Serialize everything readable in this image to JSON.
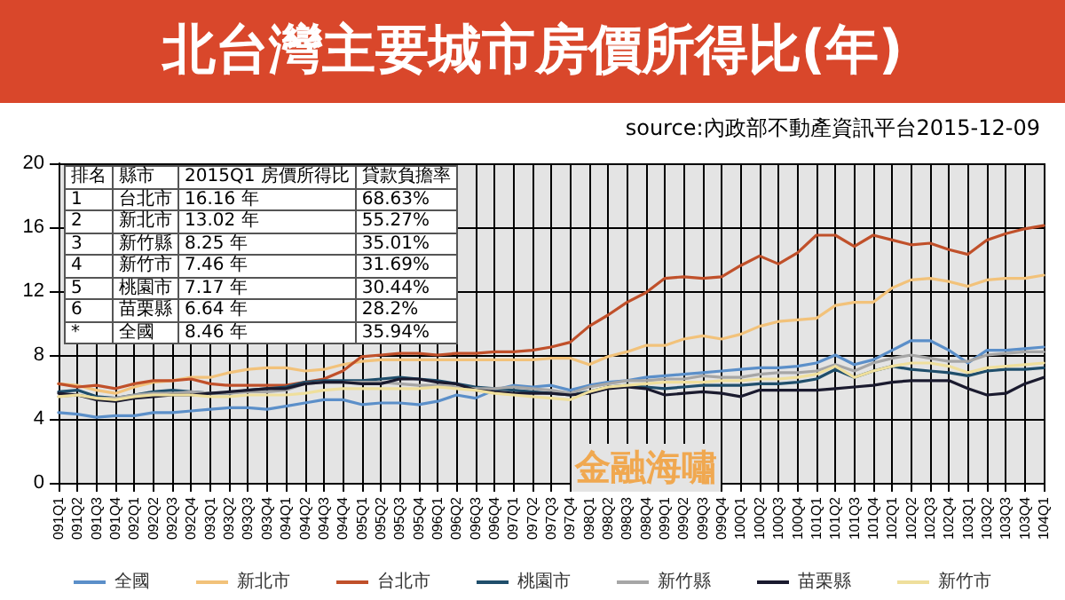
{
  "chart_data": {
    "type": "line",
    "title": "北台灣主要城市房價所得比(年)",
    "annotations": [
      "source:內政部不動產資訊平台2015-12-09",
      "金融海嘯",
      "排名",
      "縣市",
      "2015Q1 房價所得比",
      "貸款負擔率",
      "1",
      "台北市",
      "16.16 年",
      "68.63%",
      "2",
      "新北市",
      "13.02 年",
      "55.27%",
      "3",
      "新竹縣",
      "8.25 年",
      "35.01%",
      "4",
      "新竹市",
      "7.46 年",
      "31.69%",
      "5",
      "桃園市",
      "7.17 年",
      "30.44%",
      "6",
      "苗栗縣",
      "6.64 年",
      "28.2%",
      "*",
      "全國",
      "8.46 年",
      "35.94%"
    ],
    "categories": [
      "091Q1",
      "091Q2",
      "091Q3",
      "091Q4",
      "092Q1",
      "092Q2",
      "092Q3",
      "092Q4",
      "093Q1",
      "093Q2",
      "093Q3",
      "093Q4",
      "094Q1",
      "094Q2",
      "094Q3",
      "094Q4",
      "095Q1",
      "095Q2",
      "095Q3",
      "095Q4",
      "096Q1",
      "096Q2",
      "096Q3",
      "096Q4",
      "097Q1",
      "097Q2",
      "097Q3",
      "097Q4",
      "098Q1",
      "098Q2",
      "098Q3",
      "098Q4",
      "099Q1",
      "099Q2",
      "099Q3",
      "099Q4",
      "100Q1",
      "100Q2",
      "100Q3",
      "100Q4",
      "101Q1",
      "101Q2",
      "101Q3",
      "101Q4",
      "102Q1",
      "102Q2",
      "102Q3",
      "102Q4",
      "103Q1",
      "103Q2",
      "103Q3",
      "103Q4",
      "104Q1"
    ],
    "series": [
      {
        "name": "全國",
        "color": "#5b8fc9",
        "values": [
          4.4,
          4.3,
          4.1,
          4.2,
          4.2,
          4.4,
          4.4,
          4.5,
          4.6,
          4.7,
          4.7,
          4.6,
          4.8,
          5.0,
          5.2,
          5.2,
          4.9,
          5.0,
          5.0,
          4.9,
          5.1,
          5.5,
          5.3,
          5.8,
          6.1,
          6.0,
          6.1,
          5.8,
          6.1,
          6.3,
          6.4,
          6.6,
          6.7,
          6.8,
          6.9,
          7.0,
          7.1,
          7.2,
          7.2,
          7.3,
          7.5,
          8.0,
          7.4,
          7.7,
          8.3,
          8.9,
          8.9,
          8.3,
          7.5,
          8.3,
          8.3,
          8.4,
          8.5
        ]
      },
      {
        "name": "新北市",
        "color": "#f2c27a",
        "values": [
          6.2,
          6.1,
          5.8,
          5.6,
          6.0,
          6.3,
          6.4,
          6.6,
          6.6,
          6.9,
          7.1,
          7.2,
          7.2,
          7.0,
          7.1,
          7.4,
          7.6,
          7.7,
          7.7,
          7.7,
          7.7,
          7.7,
          7.7,
          7.7,
          7.7,
          7.7,
          7.8,
          7.8,
          7.4,
          7.9,
          8.2,
          8.6,
          8.6,
          9.0,
          9.2,
          9.0,
          9.3,
          9.8,
          10.1,
          10.2,
          10.3,
          11.1,
          11.3,
          11.3,
          12.2,
          12.7,
          12.8,
          12.6,
          12.3,
          12.7,
          12.8,
          12.8,
          13.0
        ]
      },
      {
        "name": "台北市",
        "color": "#c0502a",
        "values": [
          6.2,
          6.0,
          6.1,
          5.9,
          6.2,
          6.4,
          6.4,
          6.5,
          6.2,
          6.1,
          6.1,
          6.1,
          6.1,
          6.3,
          6.5,
          7.0,
          7.9,
          8.0,
          8.1,
          8.1,
          8.0,
          8.1,
          8.1,
          8.2,
          8.2,
          8.3,
          8.5,
          8.8,
          9.8,
          10.5,
          11.3,
          11.9,
          12.8,
          12.9,
          12.8,
          12.9,
          13.6,
          14.2,
          13.7,
          14.4,
          15.5,
          15.5,
          14.8,
          15.5,
          15.2,
          14.9,
          15.0,
          14.6,
          14.3,
          15.2,
          15.6,
          15.9,
          16.1
        ]
      },
      {
        "name": "桃園市",
        "color": "#1f4e6b",
        "values": [
          5.7,
          5.8,
          5.4,
          5.3,
          5.5,
          5.7,
          5.8,
          5.7,
          5.6,
          5.6,
          5.8,
          5.9,
          6.0,
          6.3,
          6.4,
          6.4,
          6.4,
          6.5,
          6.6,
          6.5,
          6.4,
          6.2,
          6.0,
          5.9,
          5.8,
          5.7,
          5.6,
          5.5,
          5.7,
          6.0,
          6.1,
          6.0,
          5.9,
          6.0,
          6.1,
          6.1,
          6.1,
          6.2,
          6.2,
          6.3,
          6.5,
          7.1,
          6.6,
          7.0,
          7.3,
          7.1,
          7.0,
          6.9,
          6.7,
          7.0,
          7.1,
          7.1,
          7.2
        ]
      },
      {
        "name": "新竹縣",
        "color": "#a6a6a6",
        "values": [
          5.4,
          5.5,
          5.3,
          5.3,
          5.5,
          5.6,
          5.6,
          5.7,
          5.6,
          5.6,
          5.7,
          5.7,
          5.8,
          6.2,
          6.3,
          6.3,
          6.3,
          6.3,
          6.2,
          6.1,
          6.1,
          6.0,
          5.9,
          5.9,
          6.0,
          5.9,
          5.8,
          5.6,
          6.0,
          6.2,
          6.4,
          6.4,
          6.5,
          6.5,
          6.7,
          6.6,
          6.6,
          6.8,
          6.9,
          6.9,
          7.0,
          7.4,
          7.0,
          7.5,
          7.8,
          8.0,
          7.8,
          7.6,
          7.6,
          8.0,
          8.1,
          8.2,
          8.2
        ]
      },
      {
        "name": "苗栗縣",
        "color": "#1a1a2e",
        "values": [
          5.6,
          5.5,
          5.2,
          5.1,
          5.3,
          5.4,
          5.5,
          5.5,
          5.6,
          5.7,
          5.8,
          5.9,
          5.9,
          6.2,
          6.3,
          6.3,
          6.2,
          6.2,
          6.5,
          6.5,
          6.3,
          6.2,
          5.8,
          5.7,
          5.6,
          5.6,
          5.6,
          5.5,
          5.6,
          5.9,
          6.0,
          5.9,
          5.5,
          5.6,
          5.7,
          5.6,
          5.4,
          5.8,
          5.8,
          5.8,
          5.8,
          5.9,
          6.0,
          6.1,
          6.3,
          6.4,
          6.4,
          6.4,
          5.9,
          5.5,
          5.6,
          6.2,
          6.6
        ]
      },
      {
        "name": "新竹市",
        "color": "#efdf9c",
        "values": [
          5.4,
          5.5,
          5.3,
          5.2,
          5.4,
          5.5,
          5.5,
          5.5,
          5.4,
          5.4,
          5.5,
          5.5,
          5.5,
          5.6,
          5.8,
          5.9,
          5.9,
          5.9,
          5.9,
          5.9,
          6.0,
          5.9,
          5.8,
          5.6,
          5.5,
          5.4,
          5.3,
          5.2,
          5.7,
          6.0,
          6.1,
          6.2,
          6.3,
          6.3,
          6.3,
          6.4,
          6.4,
          6.5,
          6.5,
          6.6,
          6.8,
          7.3,
          6.6,
          7.0,
          7.3,
          7.5,
          7.5,
          7.3,
          6.9,
          7.2,
          7.3,
          7.4,
          7.5
        ]
      }
    ],
    "ylim": [
      0,
      20
    ],
    "yticks": [
      0,
      4,
      8,
      12,
      16,
      20
    ],
    "grid": true,
    "legend": "bottom",
    "marker": "none",
    "line_style": "solid"
  }
}
